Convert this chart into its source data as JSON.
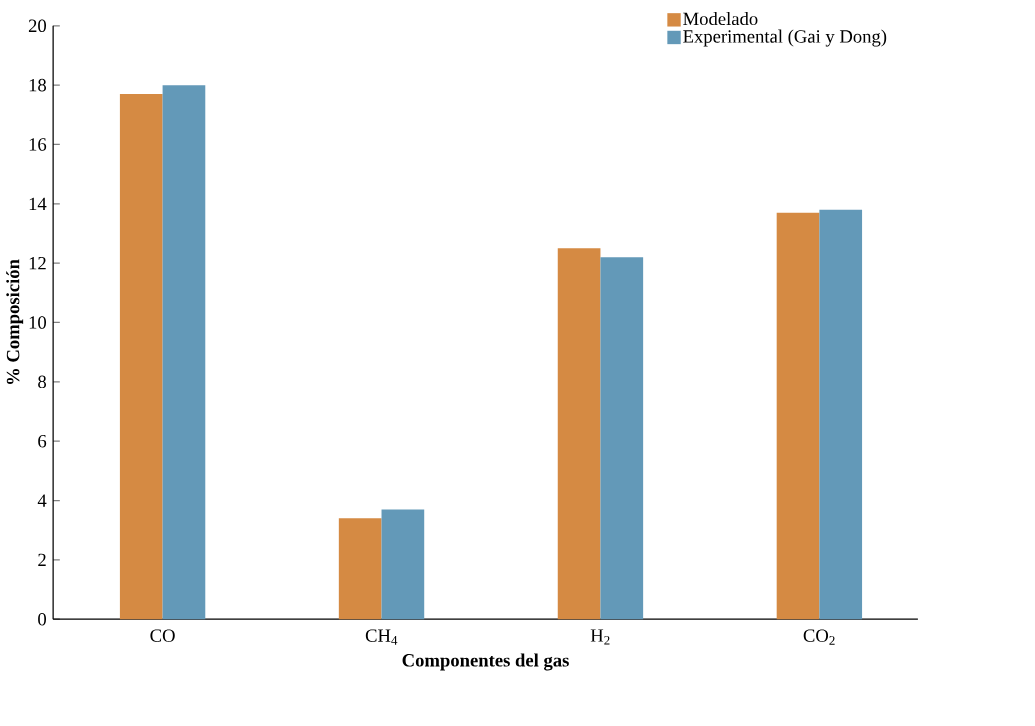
{
  "chart_data": {
    "type": "bar",
    "xlabel": "Componentes del gas",
    "ylabel": "% Composición",
    "categories": [
      "CO",
      "CH$_{4}$",
      "H$_{2}$",
      "CO$_{2}$"
    ],
    "series": [
      {
        "name": "Modelado",
        "color": "#d58a43",
        "values": [
          17.7,
          3.4,
          12.5,
          13.7
        ]
      },
      {
        "name": "Experimental (Gai y Dong)",
        "color": "#6399b8",
        "values": [
          18.0,
          3.7,
          12.2,
          13.8
        ]
      }
    ],
    "ylim": [
      0,
      20
    ],
    "yticks": [
      0,
      2,
      4,
      6,
      8,
      10,
      12,
      14,
      16,
      18,
      20
    ],
    "grid": false,
    "legend": "top right"
  }
}
